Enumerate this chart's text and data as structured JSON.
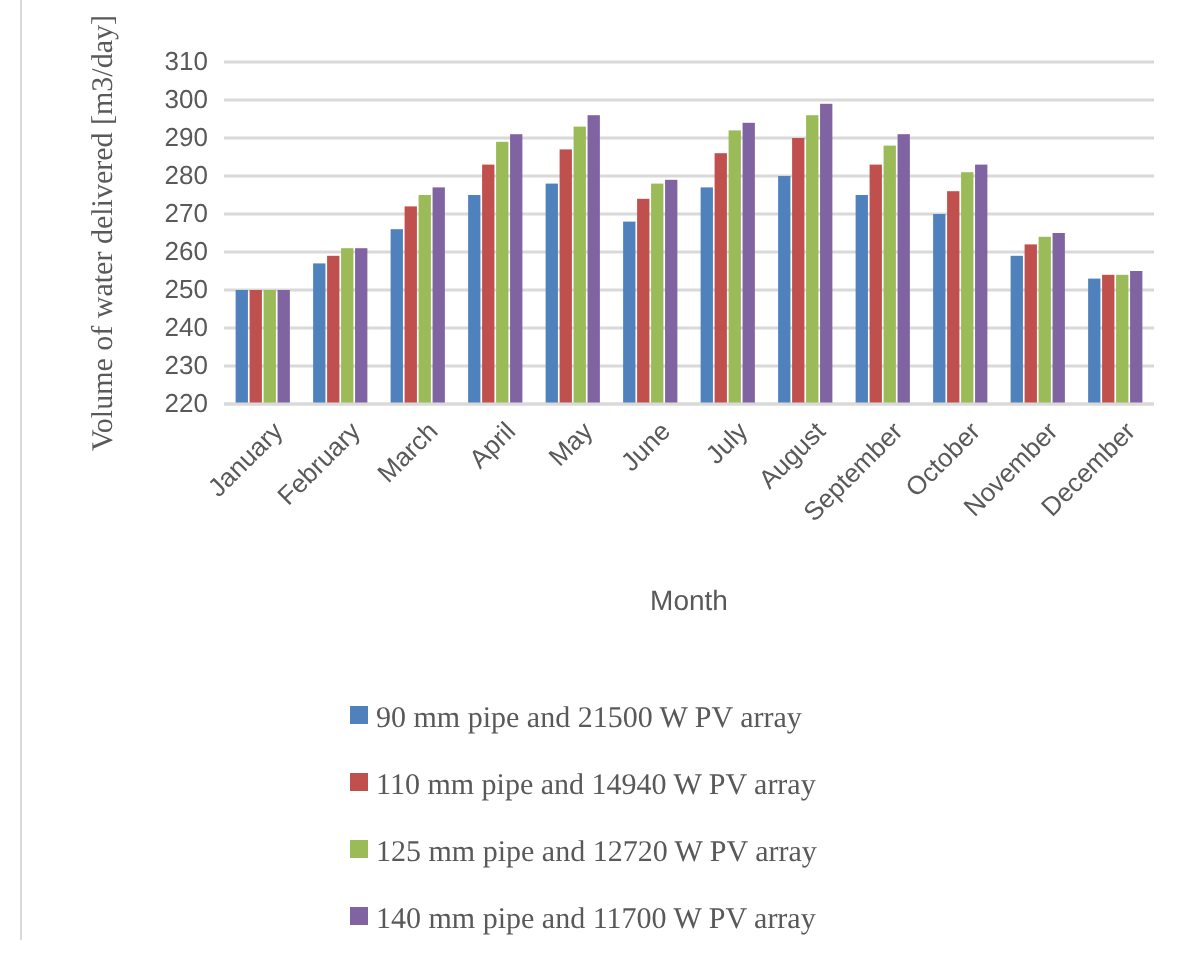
{
  "chart_data": {
    "type": "bar",
    "xlabel": "Month",
    "ylabel": "Volume of water delivered [m3/day]",
    "categories": [
      "January",
      "February",
      "March",
      "April",
      "May",
      "June",
      "July",
      "August",
      "September",
      "October",
      "November",
      "December"
    ],
    "series": [
      {
        "name": "90 mm pipe and 21500 W PV array",
        "color": "#4f81bd",
        "values": [
          250,
          257,
          266,
          275,
          278,
          268,
          277,
          280,
          275,
          270,
          259,
          253
        ]
      },
      {
        "name": "110 mm pipe and 14940 W PV array",
        "color": "#c0504d",
        "values": [
          250,
          259,
          272,
          283,
          287,
          274,
          286,
          290,
          283,
          276,
          262,
          254
        ]
      },
      {
        "name": "125 mm pipe and 12720 W PV array",
        "color": "#9bbb59",
        "values": [
          250,
          261,
          275,
          289,
          293,
          278,
          292,
          296,
          288,
          281,
          264,
          254
        ]
      },
      {
        "name": "140 mm pipe and 11700 W PV array",
        "color": "#8064a2",
        "values": [
          250,
          261,
          277,
          291,
          296,
          279,
          294,
          299,
          291,
          283,
          265,
          255
        ]
      }
    ],
    "ylim": [
      220,
      310
    ],
    "yticks": [
      220,
      230,
      240,
      250,
      260,
      270,
      280,
      290,
      300,
      310
    ],
    "grid": "y",
    "legend": "bottom"
  }
}
